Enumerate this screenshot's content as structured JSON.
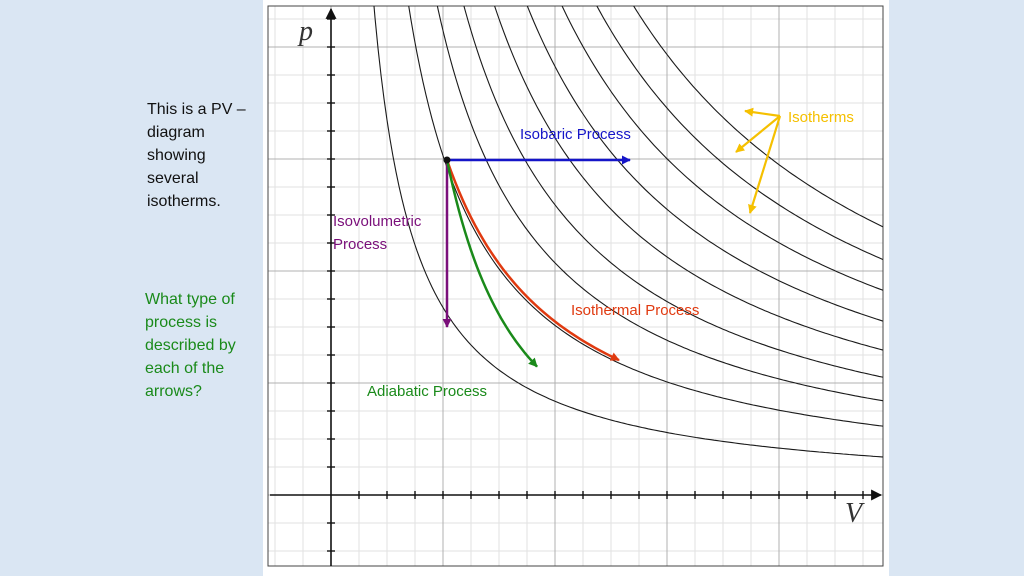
{
  "slide": {
    "intro_text": "This is a PV – diagram showing several isotherms.",
    "question_text": "What type of process is described by each of the arrows?"
  },
  "diagram": {
    "axis_y_label": "p",
    "axis_x_label": "V",
    "labels": {
      "isobaric": "Isobaric Process",
      "isovolumetric_line1": "Isovolumetric",
      "isovolumetric_line2": "Process",
      "isothermal": "Isothermal Process",
      "adiabatic": "Adiabatic Process",
      "isotherms": "Isotherms"
    },
    "colors": {
      "isobaric": "#1515c8",
      "isovolumetric": "#7a0f7a",
      "isothermal": "#e03a10",
      "adiabatic": "#1a8a1a",
      "isotherms": "#f5c000",
      "curves": "#1a1a1a",
      "grid_major": "#b0b0b0",
      "grid_minor": "#e2e2e2"
    },
    "isotherm_count": 9,
    "adiabatic_gamma": 1.67
  }
}
